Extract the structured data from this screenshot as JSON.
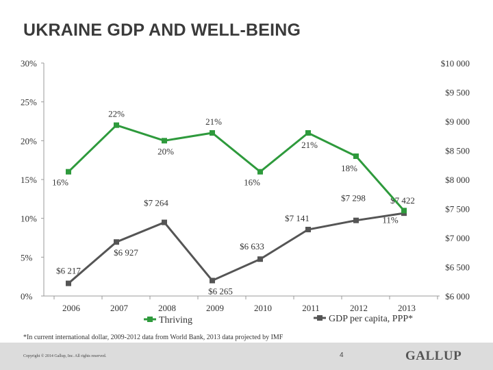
{
  "title": "UKRAINE GDP AND WELL-BEING",
  "footnote": "*In current international dollar, 2009-2012 data from World Bank, 2013 data projected by IMF",
  "footer": {
    "copyright": "Copyright © 2014 Gallup, Inc. All rights reserved.",
    "page_number": "4",
    "logo": "GALLUP"
  },
  "colors": {
    "thriving": "#2e9a3c",
    "gdp": "#555555",
    "axis": "#999999"
  },
  "chart_data": {
    "type": "line",
    "categories": [
      "2006",
      "2007",
      "2008",
      "2009",
      "2010",
      "2011",
      "2012",
      "2013"
    ],
    "left_axis": {
      "ylim": [
        0,
        30
      ],
      "ticks": [
        0,
        5,
        10,
        15,
        20,
        25,
        30
      ],
      "tick_labels": [
        "0%",
        "5%",
        "10%",
        "15%",
        "20%",
        "25%",
        "30%"
      ]
    },
    "right_axis": {
      "ylim": [
        6000,
        10000
      ],
      "ticks": [
        6000,
        6500,
        7000,
        7500,
        8000,
        8500,
        9000,
        9500,
        10000
      ],
      "tick_labels": [
        "$6 000",
        "$6 500",
        "$7 000",
        "$7 500",
        "$8 000",
        "$8 500",
        "$9 000",
        "$9 500",
        "$10 000"
      ]
    },
    "series": [
      {
        "name": "Thriving",
        "axis": "left",
        "values": [
          16,
          22,
          20,
          21,
          16,
          21,
          18,
          11
        ],
        "labels": [
          "16%",
          "22%",
          "20%",
          "21%",
          "16%",
          "21%",
          "18%",
          "11%"
        ]
      },
      {
        "name": "GDP per capita, PPP*",
        "axis": "right",
        "values": [
          6217,
          6927,
          7264,
          6265,
          6633,
          7141,
          7298,
          7422
        ],
        "labels": [
          "$6 217",
          "$6 927",
          "$7 264",
          "$6 265",
          "$6 633",
          "$7 141",
          "$7 298",
          "$7 422"
        ]
      }
    ],
    "legend_position": "bottom",
    "grid": false
  }
}
